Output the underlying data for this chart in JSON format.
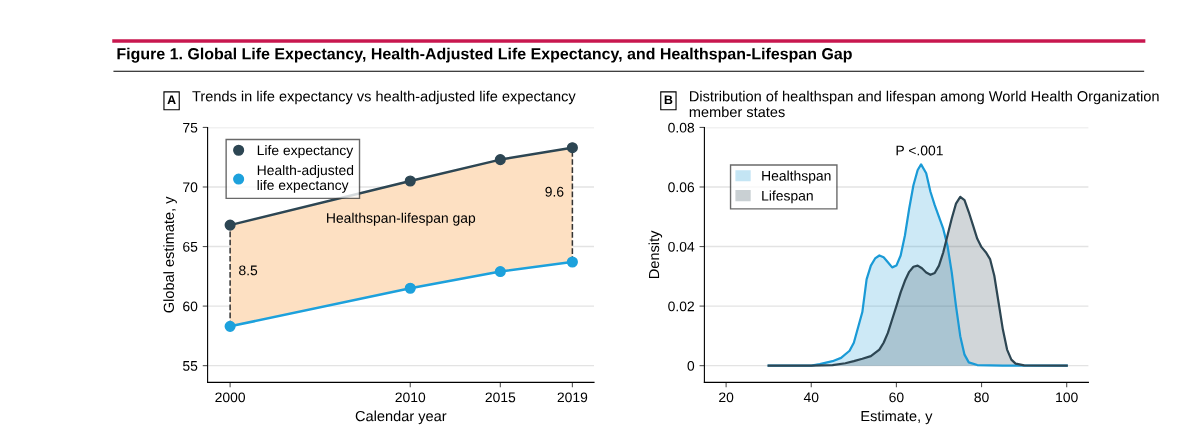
{
  "chart_data": [
    {
      "type": "line",
      "title": "Trends in life expectancy vs health-adjusted life expectancy",
      "xlabel": "Calendar year",
      "ylabel": "Global estimate, y",
      "x": [
        2000,
        2010,
        2015,
        2019
      ],
      "series": [
        {
          "name": "Life expectancy",
          "color": "#2d4653",
          "values": [
            66.8,
            70.5,
            72.3,
            73.3
          ],
          "lower": [
            58.3,
            61.5,
            62.9,
            63.7
          ],
          "upper": [
            66.8,
            70.5,
            72.3,
            73.3
          ]
        },
        {
          "name": "Health-adjusted\nlife expectancy",
          "color": "#1da1dc",
          "values": [
            58.3,
            61.5,
            62.9,
            63.7
          ]
        },
        {
          "type": "line",
          "color": "#333333",
          "x": [
            2000,
            2000
          ],
          "values": [
            58.3,
            66.8
          ],
          "line_style": "dashed",
          "marker": "none"
        },
        {
          "type": "line",
          "color": "#333333",
          "x": [
            2019,
            2019
          ],
          "values": [
            63.7,
            73.3
          ],
          "line_style": "dashed",
          "marker": "none"
        }
      ],
      "xlim": [
        1998.75,
        2020.2
      ],
      "xticks": [
        2000,
        2010,
        2015,
        2019
      ],
      "ylim": [
        53.6,
        75
      ],
      "yticks": [
        55,
        60,
        65,
        70,
        75
      ],
      "grid": "y",
      "legend": "top left",
      "marker": "circle",
      "line_style": "solid",
      "annotations": [
        "A",
        "Figure 1. Global Life Expectancy, Health-Adjusted Life Expectancy, and Healthspan-Lifespan Gap",
        "Healthspan-lifespan gap",
        {
          "text": "8.5",
          "x": 2000,
          "y": 62.9
        },
        {
          "text": "9.6",
          "x": 2019,
          "y": 69.5
        }
      ]
    },
    {
      "type": "area",
      "title": "Distribution of healthspan and lifespan among World Health Organization\nmember states",
      "xlabel": "Estimate, y",
      "ylabel": "Density",
      "series": [
        {
          "name": "Healthspan",
          "color": "#1a9ad6",
          "x": [
            30,
            40,
            42,
            45,
            47,
            49,
            50,
            52,
            53,
            54,
            55,
            56,
            57,
            58,
            59,
            60,
            61,
            62,
            63,
            64,
            65,
            65.8,
            67,
            68,
            69,
            70,
            71,
            72,
            73,
            74,
            75,
            76,
            77,
            79,
            85,
            100
          ],
          "values": [
            0,
            0,
            0.0005,
            0.0015,
            0.0026,
            0.005,
            0.0077,
            0.018,
            0.029,
            0.0336,
            0.036,
            0.037,
            0.0364,
            0.0347,
            0.033,
            0.0336,
            0.037,
            0.0437,
            0.0527,
            0.0606,
            0.0657,
            0.0676,
            0.0646,
            0.0584,
            0.0539,
            0.05,
            0.046,
            0.0403,
            0.0313,
            0.02,
            0.0099,
            0.0037,
            0.0011,
            0.0002,
            0,
            0
          ]
        },
        {
          "name": "Lifespan",
          "color": "#2d4653",
          "x": [
            30,
            40,
            45,
            48,
            50,
            52,
            54,
            56,
            57,
            58,
            59,
            60,
            61,
            62,
            63,
            64,
            65,
            66,
            67,
            68,
            69,
            70,
            71,
            72,
            73,
            74,
            75,
            76,
            77,
            78,
            79,
            80,
            81,
            82,
            83,
            84,
            85,
            86,
            87,
            88,
            90,
            100
          ],
          "values": [
            0,
            0,
            0.0002,
            0.0008,
            0.0015,
            0.0023,
            0.0032,
            0.0054,
            0.0077,
            0.011,
            0.0155,
            0.02,
            0.0246,
            0.0285,
            0.0315,
            0.0332,
            0.0336,
            0.0327,
            0.0313,
            0.0305,
            0.0311,
            0.0336,
            0.038,
            0.0437,
            0.0494,
            0.0544,
            0.0567,
            0.0556,
            0.0516,
            0.0471,
            0.0426,
            0.0398,
            0.0381,
            0.0358,
            0.0302,
            0.0212,
            0.0122,
            0.0054,
            0.002,
            0.0007,
            0.0001,
            0
          ]
        }
      ],
      "xlim": [
        14.9,
        105.1
      ],
      "xticks": [
        20,
        40,
        60,
        80,
        100
      ],
      "ylim": [
        -0.0056,
        0.08
      ],
      "yticks": [
        {
          "value": 0,
          "label": "0"
        },
        0.02,
        0.04,
        0.06,
        0.08
      ],
      "grid": "y",
      "legend": "top left",
      "marker": "none",
      "line_style": "solid",
      "annotations": [
        "B",
        "P <.001"
      ]
    }
  ]
}
